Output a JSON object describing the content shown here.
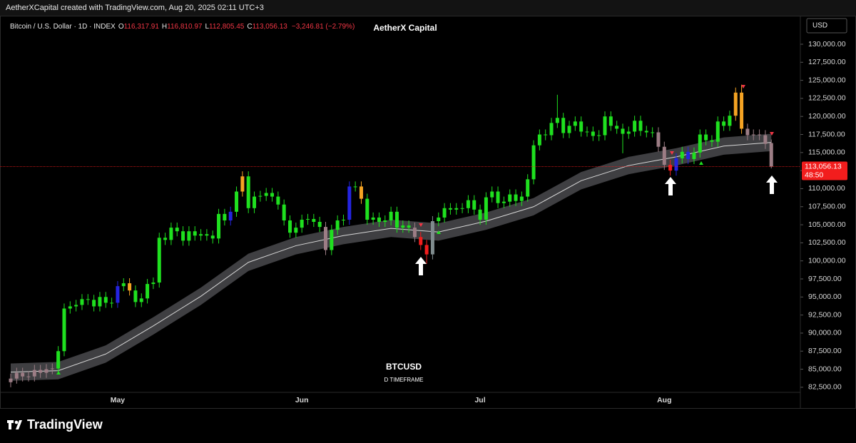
{
  "top_bar": "AetherXCapital created with TradingView.com, Aug 20, 2025 02:11 UTC+3",
  "header": {
    "symbol": "Bitcoin / U.S. Dollar · 1D · INDEX",
    "o_label": "O",
    "o": "116,317.91",
    "h_label": "H",
    "h": "116,810.97",
    "l_label": "L",
    "l": "112,805.45",
    "c_label": "C",
    "c": "113,056.13",
    "change": "−3,246.81 (−2.79%)",
    "center_title": "AetherX Capital",
    "currency": "USD"
  },
  "watermark": {
    "symbol": "BTCUSD",
    "timeframe": "D TIMEFRAME"
  },
  "footer": {
    "brand": "TradingView"
  },
  "chart_data": {
    "type": "candlestick",
    "categories": [
      null,
      null,
      null,
      null,
      null,
      null,
      null,
      null,
      null,
      null,
      null,
      null,
      null,
      null,
      null,
      null,
      null,
      null,
      "May",
      null,
      null,
      null,
      null,
      null,
      null,
      null,
      null,
      null,
      null,
      null,
      null,
      null,
      null,
      null,
      null,
      null,
      null,
      null,
      null,
      null,
      null,
      null,
      null,
      null,
      null,
      null,
      null,
      null,
      null,
      "Jun",
      null,
      null,
      null,
      null,
      null,
      null,
      null,
      null,
      null,
      null,
      null,
      null,
      null,
      null,
      null,
      null,
      null,
      null,
      null,
      null,
      null,
      null,
      null,
      null,
      null,
      null,
      null,
      null,
      null,
      "Jul",
      null,
      null,
      null,
      null,
      null,
      null,
      null,
      null,
      null,
      null,
      null,
      null,
      null,
      null,
      null,
      null,
      null,
      null,
      null,
      null,
      null,
      null,
      null,
      null,
      null,
      null,
      null,
      null,
      null,
      null,
      "Aug",
      null,
      null,
      null,
      null,
      null,
      null,
      null,
      null,
      null,
      null,
      null,
      null,
      null,
      null,
      null,
      null,
      null,
      null
    ],
    "open": [
      83200,
      83700,
      84500,
      84000,
      84000,
      84900,
      84500,
      85000,
      85100,
      87500,
      93400,
      93700,
      93900,
      94700,
      94600,
      93700,
      95000,
      94200,
      94200,
      96500,
      96900,
      95900,
      94300,
      94800,
      96800,
      97000,
      103200,
      102900,
      104600,
      104100,
      102800,
      104100,
      103500,
      103700,
      103500,
      103100,
      106500,
      105600,
      106800,
      109600,
      111700,
      107300,
      108900,
      109000,
      109400,
      108900,
      107800,
      105600,
      103900,
      104600,
      105700,
      105800,
      105400,
      104700,
      101500,
      104300,
      105600,
      105700,
      110300,
      110300,
      108600,
      105700,
      106000,
      105400,
      105600,
      106800,
      104600,
      104900,
      104600,
      103300,
      102200,
      100900,
      105500,
      106000,
      107300,
      107100,
      107300,
      107300,
      108400,
      107100,
      105700,
      108800,
      109600,
      108000,
      108200,
      109200,
      108300,
      108900,
      111300,
      116000,
      117500,
      117400,
      119100,
      119800,
      117700,
      118700,
      119300,
      117900,
      117900,
      117300,
      117400,
      120000,
      118700,
      118300,
      117600,
      117900,
      119400,
      118000,
      117800,
      117800,
      115800,
      113300,
      112500,
      114200,
      115100,
      114100,
      115000,
      117500,
      116700,
      116500,
      119300,
      118700,
      120100,
      123300,
      118300,
      117400,
      117500,
      117400,
      116317.91
    ],
    "high": [
      84400,
      85200,
      85200,
      84700,
      85600,
      85600,
      85700,
      85800,
      88200,
      94100,
      94400,
      94600,
      95400,
      95400,
      95300,
      95700,
      95700,
      94900,
      97200,
      97600,
      97600,
      96600,
      95500,
      97500,
      97700,
      103900,
      103900,
      105300,
      105300,
      104800,
      104800,
      104800,
      104400,
      104400,
      104200,
      107200,
      107200,
      107500,
      110300,
      112400,
      112400,
      109600,
      109700,
      110100,
      110100,
      109600,
      108500,
      106300,
      105300,
      106400,
      106500,
      106500,
      106100,
      105400,
      105000,
      106300,
      106400,
      111000,
      111000,
      111000,
      109300,
      106700,
      106700,
      106300,
      107500,
      107500,
      105600,
      105600,
      105300,
      104000,
      102900,
      106200,
      106700,
      108000,
      108000,
      108000,
      108000,
      109100,
      109100,
      107800,
      109500,
      110300,
      110300,
      108900,
      109900,
      109900,
      109600,
      112000,
      116700,
      118200,
      118200,
      119800,
      123000,
      120500,
      119400,
      120000,
      120000,
      118600,
      118600,
      118100,
      120700,
      120700,
      119400,
      119000,
      118600,
      120100,
      120100,
      118700,
      118500,
      118500,
      116500,
      114000,
      114900,
      115800,
      115800,
      115700,
      118200,
      118200,
      117400,
      120000,
      120000,
      120800,
      124000,
      124400,
      119000,
      118200,
      118200,
      118100,
      116810.97
    ],
    "low": [
      82500,
      83000,
      83300,
      83300,
      83300,
      83800,
      83800,
      84300,
      84400,
      86800,
      92700,
      93000,
      93200,
      93900,
      93000,
      93000,
      93500,
      93500,
      93500,
      95800,
      95200,
      93600,
      93600,
      94100,
      96100,
      96300,
      102200,
      102200,
      103400,
      102100,
      102100,
      102800,
      102800,
      102800,
      102400,
      102400,
      104900,
      104900,
      106100,
      108900,
      106600,
      106600,
      108200,
      108300,
      108200,
      107100,
      104900,
      103200,
      103200,
      103900,
      105000,
      104700,
      104000,
      100800,
      100800,
      103600,
      104900,
      105000,
      109600,
      107900,
      105000,
      105000,
      104700,
      104700,
      104900,
      103900,
      103900,
      103900,
      102600,
      101500,
      99600,
      100200,
      104800,
      105300,
      106400,
      106400,
      106600,
      106600,
      106400,
      105000,
      105000,
      108100,
      107300,
      107300,
      107500,
      107600,
      107600,
      108200,
      110600,
      115300,
      116700,
      116700,
      118400,
      117000,
      117000,
      118000,
      117200,
      117200,
      116600,
      116600,
      116700,
      118000,
      117600,
      114900,
      116900,
      117200,
      117300,
      117100,
      117100,
      115100,
      112600,
      111800,
      111800,
      113500,
      113400,
      113400,
      114300,
      116000,
      115800,
      115800,
      118000,
      118000,
      119400,
      117600,
      116700,
      116700,
      116700,
      115500,
      112805.45
    ],
    "close": [
      83700,
      84500,
      84000,
      84000,
      84900,
      84500,
      85000,
      85100,
      87500,
      93400,
      93700,
      93900,
      94700,
      94600,
      93700,
      95000,
      94200,
      94200,
      96500,
      96900,
      95900,
      94300,
      94800,
      96800,
      97000,
      103200,
      102900,
      104600,
      104100,
      102800,
      104100,
      103500,
      103700,
      103500,
      103100,
      106500,
      105600,
      106800,
      109600,
      111700,
      107300,
      108900,
      109000,
      109400,
      108900,
      107800,
      105600,
      103900,
      104600,
      105700,
      105800,
      105400,
      104700,
      101500,
      104300,
      105600,
      105700,
      110300,
      110300,
      108600,
      105700,
      106000,
      105400,
      105600,
      106800,
      104600,
      104900,
      104600,
      103300,
      102200,
      100900,
      105500,
      106000,
      107300,
      107100,
      107300,
      107300,
      108400,
      107100,
      105700,
      108800,
      109600,
      108000,
      108200,
      109200,
      108300,
      108900,
      111300,
      116000,
      117500,
      117400,
      119100,
      119800,
      117700,
      118700,
      119300,
      117900,
      117900,
      117300,
      117400,
      120000,
      118700,
      118300,
      117600,
      117900,
      119400,
      118000,
      117800,
      117800,
      115800,
      113300,
      112500,
      114200,
      115100,
      114100,
      115000,
      117500,
      116700,
      116500,
      119300,
      118700,
      120100,
      123300,
      118300,
      117400,
      117500,
      117400,
      116200,
      113056.13
    ],
    "candle_colors": "ppppppppggggggggggbgoggggggggggggggggbgogggggggggggggpgggbgoggggggggprrsgggggggggggggggggggggggggggggggggggggpprbgbgggggggoopppppr",
    "palette": {
      "g": "#1fe01f",
      "r": "#f21d1d",
      "p": "#9c7d85",
      "b": "#2424e0",
      "o": "#f4a323",
      "s": "#7f8b8d"
    },
    "band": {
      "x": [
        0,
        8,
        16,
        24,
        32,
        40,
        48,
        56,
        64,
        72,
        80,
        88,
        96,
        104,
        112,
        120,
        128
      ],
      "center": [
        84600,
        84800,
        87100,
        91000,
        95100,
        99800,
        102100,
        103500,
        104500,
        104000,
        105500,
        107500,
        111100,
        113200,
        114400,
        115900,
        116400
      ],
      "upper": [
        85800,
        86000,
        88300,
        92200,
        96300,
        101000,
        103300,
        104700,
        105700,
        105200,
        106700,
        108700,
        112300,
        114400,
        115600,
        117100,
        117600
      ],
      "lower": [
        83400,
        83600,
        85900,
        89800,
        93900,
        98600,
        100900,
        102300,
        103300,
        102800,
        104300,
        106300,
        109900,
        112000,
        113200,
        114700,
        115200
      ],
      "color": "#4a4a4e",
      "line_color": "#d8d8d8"
    },
    "last_price_label": "113,056.13",
    "countdown": "48:50",
    "ylim": [
      81300,
      133950
    ],
    "yticks": [
      {
        "value": 82500,
        "label": "82,500.00"
      },
      {
        "value": 85000,
        "label": "85,000.00"
      },
      {
        "value": 87500,
        "label": "87,500.00"
      },
      {
        "value": 90000,
        "label": "90,000.00"
      },
      {
        "value": 92500,
        "label": "92,500.00"
      },
      {
        "value": 95000,
        "label": "95,000.00"
      },
      {
        "value": 97500,
        "label": "97,500.00"
      },
      {
        "value": 100000,
        "label": "100,000.00"
      },
      {
        "value": 102500,
        "label": "102,500.00"
      },
      {
        "value": 105000,
        "label": "105,000.00"
      },
      {
        "value": 107500,
        "label": "107,500.00"
      },
      {
        "value": 110000,
        "label": "110,000.00"
      },
      {
        "value": 112500,
        "label": "112,500.00"
      },
      {
        "value": 115000,
        "label": "115,000.00"
      },
      {
        "value": 117500,
        "label": "117,500.00"
      },
      {
        "value": 120000,
        "label": "120,000.00"
      },
      {
        "value": 122500,
        "label": "122,500.00"
      },
      {
        "value": 125000,
        "label": "125,000.00"
      },
      {
        "value": 127500,
        "label": "127,500.00"
      },
      {
        "value": 130000,
        "label": "130,000.00"
      }
    ],
    "grid": false
  }
}
